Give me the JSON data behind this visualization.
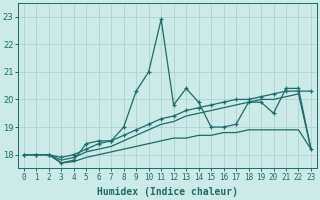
{
  "xlabel": "Humidex (Indice chaleur)",
  "background_color": "#cceae7",
  "grid_color": "#aed4d0",
  "line_color": "#1a6b6b",
  "x": [
    0,
    1,
    2,
    3,
    4,
    5,
    6,
    7,
    8,
    9,
    10,
    11,
    12,
    13,
    14,
    15,
    16,
    17,
    18,
    19,
    20,
    21,
    22,
    23
  ],
  "series1": [
    18.0,
    18.0,
    18.0,
    17.7,
    17.8,
    18.4,
    18.5,
    18.5,
    19.0,
    20.3,
    21.0,
    22.9,
    19.8,
    20.4,
    19.9,
    19.0,
    19.0,
    19.1,
    19.9,
    19.9,
    19.5,
    20.4,
    20.4,
    18.2
  ],
  "series2": [
    18.0,
    18.0,
    18.0,
    17.9,
    18.0,
    18.2,
    18.4,
    18.5,
    18.7,
    18.9,
    19.1,
    19.3,
    19.4,
    19.6,
    19.7,
    19.8,
    19.9,
    20.0,
    20.0,
    20.1,
    20.2,
    20.3,
    20.3,
    20.3
  ],
  "series3": [
    18.0,
    18.0,
    18.0,
    17.8,
    17.9,
    18.1,
    18.2,
    18.3,
    18.5,
    18.7,
    18.9,
    19.1,
    19.2,
    19.4,
    19.5,
    19.6,
    19.7,
    19.8,
    19.9,
    20.0,
    20.0,
    20.1,
    20.2,
    18.2
  ],
  "series4": [
    18.0,
    18.0,
    18.0,
    17.7,
    17.75,
    17.9,
    18.0,
    18.1,
    18.2,
    18.3,
    18.4,
    18.5,
    18.6,
    18.6,
    18.7,
    18.7,
    18.8,
    18.8,
    18.9,
    18.9,
    18.9,
    18.9,
    18.9,
    18.2
  ],
  "ylim": [
    17.5,
    23.5
  ],
  "yticks": [
    18,
    19,
    20,
    21,
    22,
    23
  ],
  "xticks": [
    0,
    1,
    2,
    3,
    4,
    5,
    6,
    7,
    8,
    9,
    10,
    11,
    12,
    13,
    14,
    15,
    16,
    17,
    18,
    19,
    20,
    21,
    22,
    23
  ],
  "tick_fontsize": 5.5,
  "xlabel_fontsize": 7.0
}
